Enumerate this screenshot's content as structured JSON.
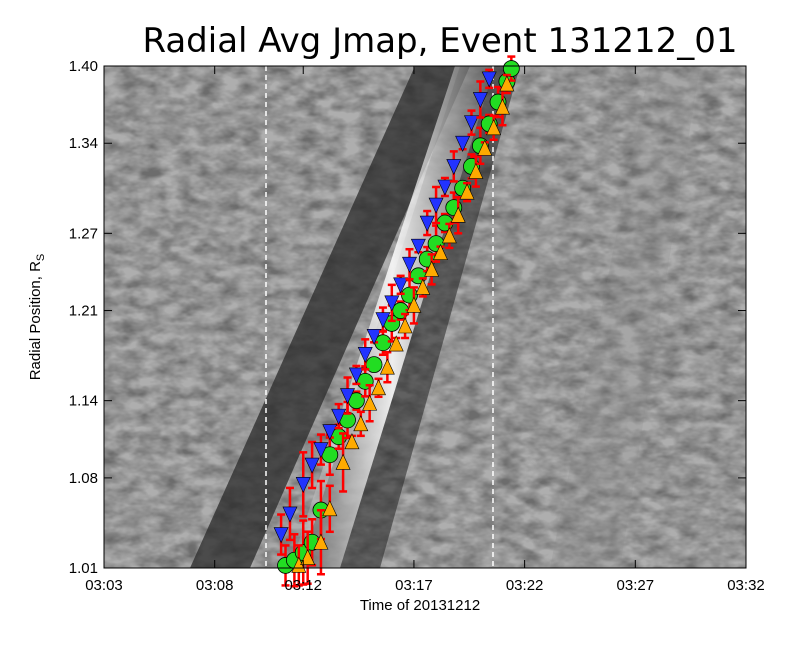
{
  "chart_data": {
    "type": "scatter",
    "title": "Radial Avg Jmap, Event 131212_01",
    "xlabel": "Time of 20131212",
    "ylabel": "Radial Position, R",
    "ylabel_sub": "S",
    "x_ticks": [
      "03:03",
      "03:08",
      "03:12",
      "03:17",
      "03:22",
      "03:27",
      "03:32"
    ],
    "y_ticks": [
      "1.01",
      "1.08",
      "1.14",
      "1.21",
      "1.27",
      "1.34",
      "1.40"
    ],
    "xlim": [
      "03:03",
      "03:32"
    ],
    "ylim": [
      1.01,
      1.4
    ],
    "background": "grayscale J-map image",
    "dashed_lines_x": [
      "03:10.5",
      "03:20.5"
    ],
    "series": [
      {
        "marker": "circle",
        "color": "#22dd22",
        "points": [
          [
            "03:11.2",
            1.012
          ],
          [
            "03:11.6",
            1.016
          ],
          [
            "03:12.0",
            1.022
          ],
          [
            "03:12.4",
            1.03
          ],
          [
            "03:12.8",
            1.055
          ],
          [
            "03:13.2",
            1.098
          ],
          [
            "03:13.6",
            1.112
          ],
          [
            "03:14.0",
            1.125
          ],
          [
            "03:14.4",
            1.14
          ],
          [
            "03:14.8",
            1.155
          ],
          [
            "03:15.2",
            1.168
          ],
          [
            "03:15.6",
            1.185
          ],
          [
            "03:16.0",
            1.2
          ],
          [
            "03:16.4",
            1.21
          ],
          [
            "03:16.8",
            1.222
          ],
          [
            "03:17.2",
            1.237
          ],
          [
            "03:17.6",
            1.25
          ],
          [
            "03:18.0",
            1.262
          ],
          [
            "03:18.4",
            1.278
          ],
          [
            "03:18.8",
            1.29
          ],
          [
            "03:19.2",
            1.305
          ],
          [
            "03:19.6",
            1.322
          ],
          [
            "03:20.0",
            1.338
          ],
          [
            "03:20.4",
            1.355
          ],
          [
            "03:20.8",
            1.372
          ],
          [
            "03:21.2",
            1.388
          ],
          [
            "03:21.4",
            1.398
          ]
        ]
      },
      {
        "marker": "triangle-down",
        "color": "#2233ff",
        "points": [
          [
            "03:11.0",
            1.036
          ],
          [
            "03:11.4",
            1.052
          ],
          [
            "03:12.0",
            1.075
          ],
          [
            "03:12.4",
            1.09
          ],
          [
            "03:12.8",
            1.102
          ],
          [
            "03:13.2",
            1.116
          ],
          [
            "03:13.6",
            1.128
          ],
          [
            "03:14.0",
            1.144
          ],
          [
            "03:14.4",
            1.16
          ],
          [
            "03:14.8",
            1.176
          ],
          [
            "03:15.2",
            1.19
          ],
          [
            "03:15.6",
            1.203
          ],
          [
            "03:16.0",
            1.216
          ],
          [
            "03:16.4",
            1.23
          ],
          [
            "03:16.8",
            1.246
          ],
          [
            "03:17.2",
            1.26
          ],
          [
            "03:17.6",
            1.278
          ],
          [
            "03:18.0",
            1.292
          ],
          [
            "03:18.4",
            1.306
          ],
          [
            "03:18.8",
            1.322
          ],
          [
            "03:19.2",
            1.34
          ],
          [
            "03:19.6",
            1.356
          ],
          [
            "03:20.0",
            1.374
          ],
          [
            "03:20.4",
            1.39
          ]
        ]
      },
      {
        "marker": "triangle-up",
        "color": "#ffaa00",
        "points": [
          [
            "03:11.8",
            1.012
          ],
          [
            "03:12.2",
            1.018
          ],
          [
            "03:12.8",
            1.03
          ],
          [
            "03:13.2",
            1.056
          ],
          [
            "03:13.8",
            1.092
          ],
          [
            "03:14.2",
            1.108
          ],
          [
            "03:14.6",
            1.122
          ],
          [
            "03:15.0",
            1.138
          ],
          [
            "03:15.4",
            1.15
          ],
          [
            "03:15.8",
            1.166
          ],
          [
            "03:16.2",
            1.184
          ],
          [
            "03:16.6",
            1.198
          ],
          [
            "03:17.0",
            1.214
          ],
          [
            "03:17.4",
            1.228
          ],
          [
            "03:17.8",
            1.242
          ],
          [
            "03:18.2",
            1.255
          ],
          [
            "03:18.6",
            1.268
          ],
          [
            "03:19.0",
            1.284
          ],
          [
            "03:19.4",
            1.302
          ],
          [
            "03:19.8",
            1.318
          ],
          [
            "03:20.2",
            1.336
          ],
          [
            "03:20.6",
            1.352
          ],
          [
            "03:21.0",
            1.368
          ],
          [
            "03:21.2",
            1.386
          ]
        ]
      }
    ],
    "error_bar_color": "#ff0000"
  }
}
